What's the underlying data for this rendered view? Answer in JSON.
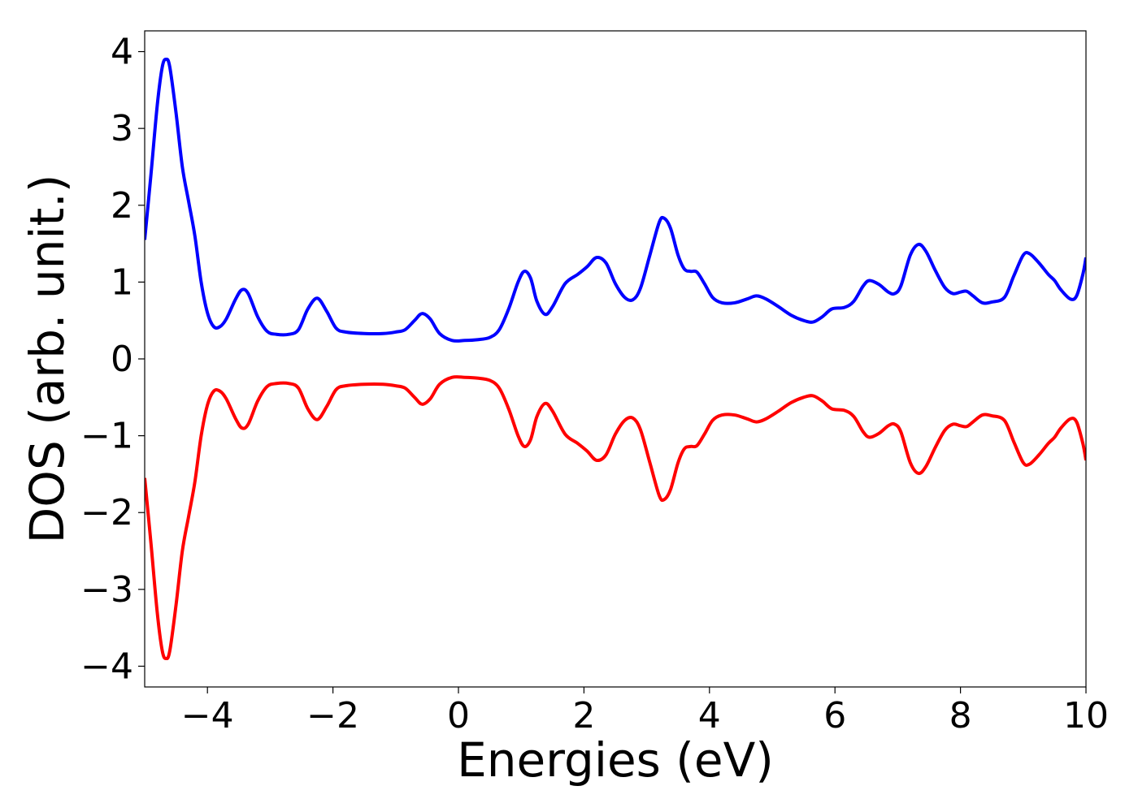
{
  "chart_data": {
    "type": "line",
    "xlabel": "Energies (eV)",
    "ylabel": "DOS (arb. unit.)",
    "xlim": [
      -5,
      10
    ],
    "ylim": [
      -4.27,
      4.27
    ],
    "xticks": [
      {
        "value": -4,
        "label": "−4"
      },
      {
        "value": -2,
        "label": "−2"
      },
      {
        "value": 0,
        "label": "0"
      },
      {
        "value": 2,
        "label": "2"
      },
      {
        "value": 4,
        "label": "4"
      },
      {
        "value": 6,
        "label": "6"
      },
      {
        "value": 8,
        "label": "8"
      },
      {
        "value": 10,
        "label": "10"
      }
    ],
    "yticks": [
      {
        "value": 4,
        "label": "4"
      },
      {
        "value": 3,
        "label": "3"
      },
      {
        "value": 2,
        "label": "2"
      },
      {
        "value": 1,
        "label": "1"
      },
      {
        "value": 0,
        "label": "0"
      },
      {
        "value": -1,
        "label": "−1"
      },
      {
        "value": -2,
        "label": "−2"
      },
      {
        "value": -3,
        "label": "−3"
      },
      {
        "value": -4,
        "label": "−4"
      }
    ],
    "grid": false,
    "series": [
      {
        "color": "#0000ff",
        "points": [
          [
            -5.0,
            1.55
          ],
          [
            -4.9,
            2.4
          ],
          [
            -4.8,
            3.3
          ],
          [
            -4.72,
            3.8
          ],
          [
            -4.66,
            3.9
          ],
          [
            -4.6,
            3.8
          ],
          [
            -4.5,
            3.2
          ],
          [
            -4.4,
            2.5
          ],
          [
            -4.3,
            2.05
          ],
          [
            -4.2,
            1.6
          ],
          [
            -4.1,
            1.0
          ],
          [
            -4.0,
            0.6
          ],
          [
            -3.9,
            0.42
          ],
          [
            -3.8,
            0.42
          ],
          [
            -3.7,
            0.52
          ],
          [
            -3.55,
            0.78
          ],
          [
            -3.45,
            0.9
          ],
          [
            -3.35,
            0.85
          ],
          [
            -3.2,
            0.55
          ],
          [
            -3.05,
            0.36
          ],
          [
            -2.9,
            0.32
          ],
          [
            -2.7,
            0.32
          ],
          [
            -2.55,
            0.38
          ],
          [
            -2.4,
            0.65
          ],
          [
            -2.25,
            0.79
          ],
          [
            -2.1,
            0.62
          ],
          [
            -1.95,
            0.4
          ],
          [
            -1.8,
            0.35
          ],
          [
            -1.5,
            0.33
          ],
          [
            -1.2,
            0.33
          ],
          [
            -1.0,
            0.35
          ],
          [
            -0.85,
            0.38
          ],
          [
            -0.7,
            0.5
          ],
          [
            -0.58,
            0.59
          ],
          [
            -0.45,
            0.52
          ],
          [
            -0.3,
            0.33
          ],
          [
            -0.1,
            0.24
          ],
          [
            0.1,
            0.24
          ],
          [
            0.3,
            0.25
          ],
          [
            0.5,
            0.28
          ],
          [
            0.65,
            0.38
          ],
          [
            0.8,
            0.65
          ],
          [
            0.95,
            1.0
          ],
          [
            1.05,
            1.14
          ],
          [
            1.15,
            1.05
          ],
          [
            1.25,
            0.75
          ],
          [
            1.38,
            0.58
          ],
          [
            1.5,
            0.68
          ],
          [
            1.7,
            0.98
          ],
          [
            1.9,
            1.1
          ],
          [
            2.05,
            1.2
          ],
          [
            2.2,
            1.32
          ],
          [
            2.35,
            1.25
          ],
          [
            2.5,
            0.98
          ],
          [
            2.65,
            0.8
          ],
          [
            2.78,
            0.77
          ],
          [
            2.9,
            0.92
          ],
          [
            3.05,
            1.35
          ],
          [
            3.2,
            1.78
          ],
          [
            3.28,
            1.83
          ],
          [
            3.38,
            1.7
          ],
          [
            3.5,
            1.35
          ],
          [
            3.6,
            1.17
          ],
          [
            3.7,
            1.14
          ],
          [
            3.8,
            1.13
          ],
          [
            3.92,
            0.98
          ],
          [
            4.05,
            0.8
          ],
          [
            4.2,
            0.73
          ],
          [
            4.4,
            0.73
          ],
          [
            4.6,
            0.78
          ],
          [
            4.75,
            0.82
          ],
          [
            4.9,
            0.78
          ],
          [
            5.1,
            0.68
          ],
          [
            5.3,
            0.57
          ],
          [
            5.5,
            0.5
          ],
          [
            5.65,
            0.48
          ],
          [
            5.8,
            0.55
          ],
          [
            5.95,
            0.65
          ],
          [
            6.15,
            0.67
          ],
          [
            6.3,
            0.75
          ],
          [
            6.45,
            0.95
          ],
          [
            6.55,
            1.02
          ],
          [
            6.7,
            0.97
          ],
          [
            6.85,
            0.87
          ],
          [
            6.95,
            0.85
          ],
          [
            7.05,
            0.95
          ],
          [
            7.2,
            1.35
          ],
          [
            7.33,
            1.49
          ],
          [
            7.45,
            1.4
          ],
          [
            7.6,
            1.15
          ],
          [
            7.75,
            0.93
          ],
          [
            7.88,
            0.85
          ],
          [
            8.0,
            0.87
          ],
          [
            8.1,
            0.88
          ],
          [
            8.2,
            0.82
          ],
          [
            8.35,
            0.73
          ],
          [
            8.5,
            0.74
          ],
          [
            8.7,
            0.8
          ],
          [
            8.85,
            1.08
          ],
          [
            9.0,
            1.35
          ],
          [
            9.1,
            1.37
          ],
          [
            9.25,
            1.25
          ],
          [
            9.4,
            1.1
          ],
          [
            9.5,
            1.02
          ],
          [
            9.6,
            0.9
          ],
          [
            9.75,
            0.78
          ],
          [
            9.85,
            0.82
          ],
          [
            9.95,
            1.1
          ],
          [
            10.0,
            1.32
          ]
        ]
      },
      {
        "color": "#ff0000",
        "points": [
          [
            -5.0,
            -1.55
          ],
          [
            -4.9,
            -2.4
          ],
          [
            -4.8,
            -3.3
          ],
          [
            -4.72,
            -3.8
          ],
          [
            -4.66,
            -3.9
          ],
          [
            -4.6,
            -3.8
          ],
          [
            -4.5,
            -3.2
          ],
          [
            -4.4,
            -2.5
          ],
          [
            -4.3,
            -2.05
          ],
          [
            -4.2,
            -1.6
          ],
          [
            -4.1,
            -1.0
          ],
          [
            -4.0,
            -0.6
          ],
          [
            -3.9,
            -0.42
          ],
          [
            -3.8,
            -0.42
          ],
          [
            -3.7,
            -0.52
          ],
          [
            -3.55,
            -0.78
          ],
          [
            -3.45,
            -0.9
          ],
          [
            -3.35,
            -0.85
          ],
          [
            -3.2,
            -0.55
          ],
          [
            -3.05,
            -0.36
          ],
          [
            -2.9,
            -0.32
          ],
          [
            -2.7,
            -0.32
          ],
          [
            -2.55,
            -0.38
          ],
          [
            -2.4,
            -0.65
          ],
          [
            -2.25,
            -0.79
          ],
          [
            -2.1,
            -0.62
          ],
          [
            -1.95,
            -0.4
          ],
          [
            -1.8,
            -0.35
          ],
          [
            -1.5,
            -0.33
          ],
          [
            -1.2,
            -0.33
          ],
          [
            -1.0,
            -0.35
          ],
          [
            -0.85,
            -0.38
          ],
          [
            -0.7,
            -0.5
          ],
          [
            -0.58,
            -0.59
          ],
          [
            -0.45,
            -0.52
          ],
          [
            -0.3,
            -0.33
          ],
          [
            -0.1,
            -0.24
          ],
          [
            0.1,
            -0.24
          ],
          [
            0.3,
            -0.25
          ],
          [
            0.5,
            -0.28
          ],
          [
            0.65,
            -0.38
          ],
          [
            0.8,
            -0.65
          ],
          [
            0.95,
            -1.0
          ],
          [
            1.05,
            -1.14
          ],
          [
            1.15,
            -1.05
          ],
          [
            1.25,
            -0.75
          ],
          [
            1.38,
            -0.58
          ],
          [
            1.5,
            -0.68
          ],
          [
            1.7,
            -0.98
          ],
          [
            1.9,
            -1.1
          ],
          [
            2.05,
            -1.2
          ],
          [
            2.2,
            -1.32
          ],
          [
            2.35,
            -1.25
          ],
          [
            2.5,
            -0.98
          ],
          [
            2.65,
            -0.8
          ],
          [
            2.78,
            -0.77
          ],
          [
            2.9,
            -0.92
          ],
          [
            3.05,
            -1.35
          ],
          [
            3.2,
            -1.78
          ],
          [
            3.28,
            -1.83
          ],
          [
            3.38,
            -1.7
          ],
          [
            3.5,
            -1.35
          ],
          [
            3.6,
            -1.17
          ],
          [
            3.7,
            -1.14
          ],
          [
            3.8,
            -1.13
          ],
          [
            3.92,
            -0.98
          ],
          [
            4.05,
            -0.8
          ],
          [
            4.2,
            -0.73
          ],
          [
            4.4,
            -0.73
          ],
          [
            4.6,
            -0.78
          ],
          [
            4.75,
            -0.82
          ],
          [
            4.9,
            -0.78
          ],
          [
            5.1,
            -0.68
          ],
          [
            5.3,
            -0.57
          ],
          [
            5.5,
            -0.5
          ],
          [
            5.65,
            -0.48
          ],
          [
            5.8,
            -0.55
          ],
          [
            5.95,
            -0.65
          ],
          [
            6.15,
            -0.67
          ],
          [
            6.3,
            -0.75
          ],
          [
            6.45,
            -0.95
          ],
          [
            6.55,
            -1.02
          ],
          [
            6.7,
            -0.97
          ],
          [
            6.85,
            -0.87
          ],
          [
            6.95,
            -0.85
          ],
          [
            7.05,
            -0.95
          ],
          [
            7.2,
            -1.35
          ],
          [
            7.33,
            -1.49
          ],
          [
            7.45,
            -1.4
          ],
          [
            7.6,
            -1.15
          ],
          [
            7.75,
            -0.93
          ],
          [
            7.88,
            -0.85
          ],
          [
            8.0,
            -0.87
          ],
          [
            8.1,
            -0.88
          ],
          [
            8.2,
            -0.82
          ],
          [
            8.35,
            -0.73
          ],
          [
            8.5,
            -0.74
          ],
          [
            8.7,
            -0.8
          ],
          [
            8.85,
            -1.08
          ],
          [
            9.0,
            -1.35
          ],
          [
            9.1,
            -1.37
          ],
          [
            9.25,
            -1.25
          ],
          [
            9.4,
            -1.1
          ],
          [
            9.5,
            -1.02
          ],
          [
            9.6,
            -0.9
          ],
          [
            9.75,
            -0.78
          ],
          [
            9.85,
            -0.82
          ],
          [
            9.95,
            -1.1
          ],
          [
            10.0,
            -1.32
          ]
        ]
      }
    ]
  }
}
